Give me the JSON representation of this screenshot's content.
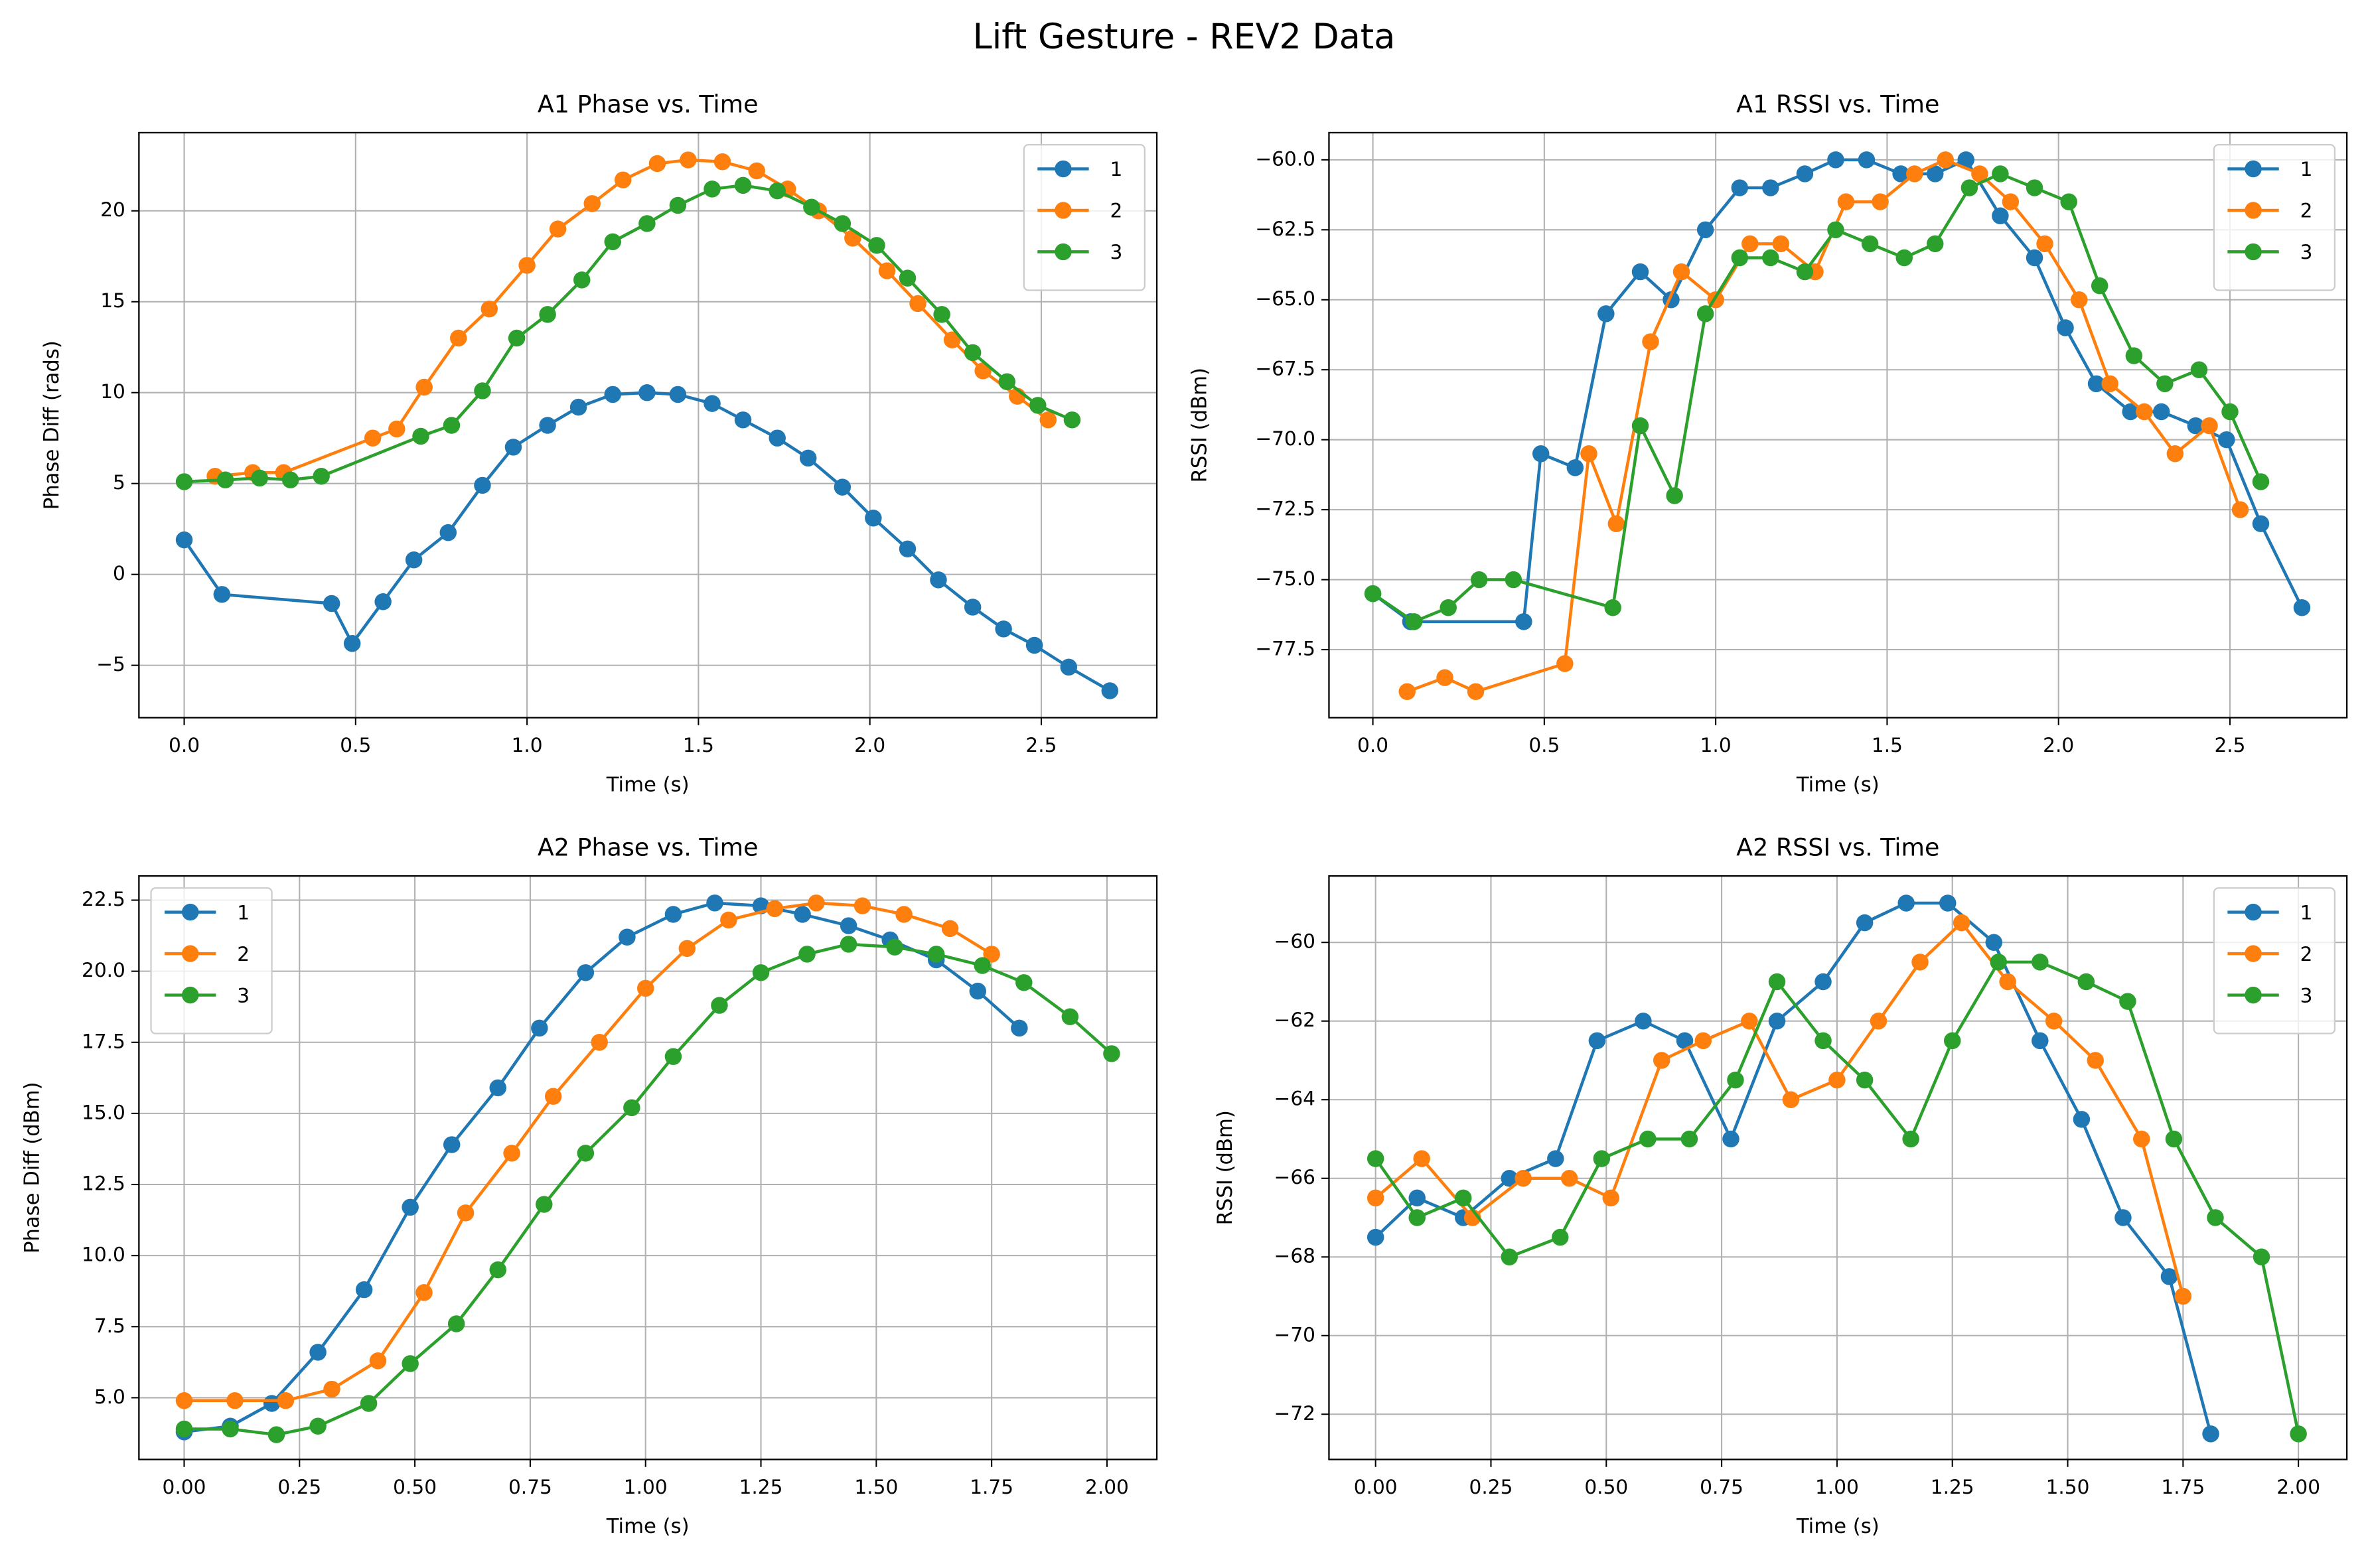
{
  "title": "Lift Gesture - REV2 Data",
  "chart_data": [
    {
      "type": "line",
      "title": "A1 Phase vs. Time",
      "x_label": "Time (s)",
      "y_label": "Phase Diff (rads)",
      "xlim": [
        -0.132,
        2.837
      ],
      "ylim": [
        -7.88,
        24.3
      ],
      "xticks": [
        {
          "value": 0,
          "label": "0.0"
        },
        0.5,
        {
          "value": 1,
          "label": "1.0"
        },
        1.5,
        {
          "value": 2,
          "label": "2.0"
        },
        2.5
      ],
      "yticks": [
        {
          "value": -5,
          "label": "−5"
        },
        0,
        5,
        10,
        15,
        20
      ],
      "grid": true,
      "legend": "upper right",
      "series": [
        {
          "name": "1",
          "color": "#1f77b4",
          "x": [
            0,
            0.11,
            0.43,
            0.49,
            0.58,
            0.67,
            0.77,
            0.87,
            0.96,
            1.06,
            1.15,
            1.25,
            1.35,
            1.44,
            1.54,
            1.63,
            1.73,
            1.82,
            1.92,
            2.01,
            2.11,
            2.2,
            2.3,
            2.39,
            2.48,
            2.58,
            2.7
          ],
          "values": [
            1.9,
            -1.1,
            -1.6,
            -3.8,
            -1.5,
            0.8,
            2.3,
            4.9,
            7.0,
            8.2,
            9.2,
            9.9,
            10.0,
            9.9,
            9.4,
            8.5,
            7.5,
            6.4,
            4.8,
            3.1,
            1.4,
            -0.3,
            -1.8,
            -3.0,
            -3.9,
            -5.1,
            -6.4
          ]
        },
        {
          "name": "2",
          "color": "#ff7f0e",
          "x": [
            0.09,
            0.2,
            0.29,
            0.55,
            0.62,
            0.7,
            0.8,
            0.89,
            1.0,
            1.09,
            1.19,
            1.28,
            1.38,
            1.47,
            1.57,
            1.67,
            1.76,
            1.85,
            1.95,
            2.05,
            2.14,
            2.24,
            2.33,
            2.43,
            2.52
          ],
          "values": [
            5.4,
            5.6,
            5.6,
            7.5,
            8.0,
            10.3,
            13.0,
            14.6,
            17.0,
            19.0,
            20.4,
            21.7,
            22.6,
            22.8,
            22.7,
            22.2,
            21.2,
            20.0,
            18.5,
            16.7,
            14.9,
            12.9,
            11.2,
            9.8,
            8.5
          ]
        },
        {
          "name": "3",
          "color": "#2ca02c",
          "x": [
            0,
            0.12,
            0.22,
            0.31,
            0.4,
            0.69,
            0.78,
            0.87,
            0.97,
            1.06,
            1.16,
            1.25,
            1.35,
            1.44,
            1.54,
            1.63,
            1.73,
            1.83,
            1.92,
            2.02,
            2.11,
            2.21,
            2.3,
            2.4,
            2.49,
            2.59
          ],
          "values": [
            5.1,
            5.2,
            5.3,
            5.2,
            5.4,
            7.6,
            8.2,
            10.1,
            13.0,
            14.3,
            16.2,
            18.3,
            19.3,
            20.3,
            21.2,
            21.4,
            21.1,
            20.2,
            19.3,
            18.1,
            16.3,
            14.3,
            12.2,
            10.6,
            9.3,
            8.5
          ]
        }
      ]
    },
    {
      "type": "line",
      "title": "A1 RSSI vs. Time",
      "x_label": "Time (s)",
      "y_label": "RSSI (dBm)",
      "xlim": [
        -0.128,
        2.841
      ],
      "ylim": [
        -79.93,
        -59.03
      ],
      "xticks": [
        {
          "value": 0,
          "label": "0.0"
        },
        0.5,
        {
          "value": 1,
          "label": "1.0"
        },
        1.5,
        {
          "value": 2,
          "label": "2.0"
        },
        2.5
      ],
      "yticks": [
        {
          "value": -77.5,
          "label": "−77.5"
        },
        {
          "value": -75,
          "label": "−75.0"
        },
        {
          "value": -72.5,
          "label": "−72.5"
        },
        {
          "value": -70,
          "label": "−70.0"
        },
        {
          "value": -67.5,
          "label": "−67.5"
        },
        {
          "value": -65,
          "label": "−65.0"
        },
        {
          "value": -62.5,
          "label": "−62.5"
        },
        {
          "value": -60,
          "label": "−60.0"
        }
      ],
      "grid": true,
      "legend": "upper right",
      "series": [
        {
          "name": "1",
          "color": "#1f77b4",
          "x": [
            0,
            0.11,
            0.44,
            0.49,
            0.59,
            0.68,
            0.78,
            0.87,
            0.97,
            1.07,
            1.16,
            1.26,
            1.35,
            1.44,
            1.54,
            1.64,
            1.73,
            1.83,
            1.93,
            2.02,
            2.11,
            2.21,
            2.3,
            2.4,
            2.49,
            2.59,
            2.71
          ],
          "values": [
            -75.5,
            -76.5,
            -76.5,
            -70.5,
            -71,
            -65.5,
            -64,
            -65,
            -62.5,
            -61,
            -61,
            -60.5,
            -60,
            -60,
            -60.5,
            -60.5,
            -60,
            -62,
            -63.5,
            -66,
            -68,
            -69,
            -69,
            -69.5,
            -70,
            -73,
            -76
          ]
        },
        {
          "name": "2",
          "color": "#ff7f0e",
          "x": [
            0.1,
            0.21,
            0.3,
            0.56,
            0.63,
            0.71,
            0.81,
            0.9,
            1.0,
            1.1,
            1.19,
            1.29,
            1.38,
            1.48,
            1.58,
            1.67,
            1.77,
            1.86,
            1.96,
            2.06,
            2.15,
            2.25,
            2.34,
            2.44,
            2.53
          ],
          "values": [
            -79,
            -78.5,
            -79,
            -78,
            -70.5,
            -73,
            -66.5,
            -64,
            -65,
            -63,
            -63,
            -64,
            -61.5,
            -61.5,
            -60.5,
            -60,
            -60.5,
            -61.5,
            -63,
            -65,
            -68,
            -69,
            -70.5,
            -69.5,
            -72.5
          ]
        },
        {
          "name": "3",
          "color": "#2ca02c",
          "x": [
            0,
            0.12,
            0.22,
            0.31,
            0.41,
            0.7,
            0.78,
            0.88,
            0.97,
            1.07,
            1.16,
            1.26,
            1.35,
            1.45,
            1.55,
            1.64,
            1.74,
            1.83,
            1.93,
            2.03,
            2.12,
            2.22,
            2.31,
            2.41,
            2.5,
            2.59
          ],
          "values": [
            -75.5,
            -76.5,
            -76,
            -75,
            -75,
            -76,
            -69.5,
            -72,
            -65.5,
            -63.5,
            -63.5,
            -64,
            -62.5,
            -63,
            -63.5,
            -63,
            -61,
            -60.5,
            -61,
            -61.5,
            -64.5,
            -67,
            -68,
            -67.5,
            -69,
            -71.5
          ]
        }
      ]
    },
    {
      "type": "line",
      "title": "A2 Phase vs. Time",
      "x_label": "Time (s)",
      "y_label": "Phase Diff (dBm)",
      "xlim": [
        -0.098,
        2.108
      ],
      "ylim": [
        2.83,
        23.35
      ],
      "xticks": [
        {
          "value": 0,
          "label": "0.00"
        },
        0.25,
        {
          "value": 0.5,
          "label": "0.50"
        },
        0.75,
        {
          "value": 1,
          "label": "1.00"
        },
        1.25,
        {
          "value": 1.5,
          "label": "1.50"
        },
        1.75,
        {
          "value": 2,
          "label": "2.00"
        }
      ],
      "yticks": [
        {
          "value": 5,
          "label": "5.0"
        },
        7.5,
        {
          "value": 10,
          "label": "10.0"
        },
        12.5,
        {
          "value": 15,
          "label": "15.0"
        },
        17.5,
        {
          "value": 20,
          "label": "20.0"
        },
        22.5
      ],
      "grid": true,
      "legend": "upper left",
      "series": [
        {
          "name": "1",
          "color": "#1f77b4",
          "x": [
            0,
            0.1,
            0.19,
            0.29,
            0.39,
            0.49,
            0.58,
            0.68,
            0.77,
            0.87,
            0.96,
            1.06,
            1.15,
            1.25,
            1.34,
            1.44,
            1.53,
            1.63,
            1.72,
            1.81
          ],
          "values": [
            3.8,
            4.0,
            4.8,
            6.6,
            8.8,
            11.7,
            13.9,
            15.9,
            18.0,
            19.95,
            21.2,
            22.0,
            22.4,
            22.3,
            22.0,
            21.6,
            21.1,
            20.4,
            19.3,
            18.0
          ]
        },
        {
          "name": "2",
          "color": "#ff7f0e",
          "x": [
            0,
            0.11,
            0.22,
            0.32,
            0.42,
            0.52,
            0.61,
            0.71,
            0.8,
            0.9,
            1.0,
            1.09,
            1.18,
            1.28,
            1.37,
            1.47,
            1.56,
            1.66,
            1.75
          ],
          "values": [
            4.9,
            4.9,
            4.9,
            5.3,
            6.3,
            8.7,
            11.5,
            13.6,
            15.6,
            17.5,
            19.4,
            20.8,
            21.8,
            22.2,
            22.4,
            22.3,
            22.0,
            21.5,
            20.6
          ]
        },
        {
          "name": "3",
          "color": "#2ca02c",
          "x": [
            0,
            0.1,
            0.2,
            0.29,
            0.4,
            0.49,
            0.59,
            0.68,
            0.78,
            0.87,
            0.97,
            1.06,
            1.16,
            1.25,
            1.35,
            1.44,
            1.54,
            1.63,
            1.73,
            1.82,
            1.92,
            2.01
          ],
          "values": [
            3.9,
            3.9,
            3.7,
            4.0,
            4.8,
            6.2,
            7.6,
            9.5,
            11.8,
            13.6,
            15.2,
            17.0,
            18.8,
            19.95,
            20.6,
            20.95,
            20.85,
            20.6,
            20.2,
            19.6,
            18.4,
            17.1
          ]
        }
      ]
    },
    {
      "type": "line",
      "title": "A2 RSSI vs. Time",
      "x_label": "Time (s)",
      "y_label": "RSSI (dBm)",
      "xlim": [
        -0.101,
        2.105
      ],
      "ylim": [
        -73.15,
        -58.31
      ],
      "xticks": [
        {
          "value": 0,
          "label": "0.00"
        },
        0.25,
        {
          "value": 0.5,
          "label": "0.50"
        },
        0.75,
        {
          "value": 1,
          "label": "1.00"
        },
        1.25,
        {
          "value": 1.5,
          "label": "1.50"
        },
        1.75,
        {
          "value": 2,
          "label": "2.00"
        }
      ],
      "yticks": [
        {
          "value": -72,
          "label": "−72"
        },
        {
          "value": -70,
          "label": "−70"
        },
        {
          "value": -68,
          "label": "−68"
        },
        {
          "value": -66,
          "label": "−66"
        },
        {
          "value": -64,
          "label": "−64"
        },
        {
          "value": -62,
          "label": "−62"
        },
        {
          "value": -60,
          "label": "−60"
        }
      ],
      "grid": true,
      "legend": "upper right",
      "series": [
        {
          "name": "1",
          "color": "#1f77b4",
          "x": [
            0,
            0.09,
            0.19,
            0.29,
            0.39,
            0.48,
            0.58,
            0.67,
            0.77,
            0.87,
            0.97,
            1.06,
            1.15,
            1.24,
            1.34,
            1.44,
            1.53,
            1.62,
            1.72,
            1.81
          ],
          "values": [
            -67.5,
            -66.5,
            -67,
            -66,
            -65.5,
            -62.5,
            -62,
            -62.5,
            -65,
            -62,
            -61,
            -59.5,
            -59,
            -59,
            -60,
            -62.5,
            -64.5,
            -67,
            -68.5,
            -72.5
          ]
        },
        {
          "name": "2",
          "color": "#ff7f0e",
          "x": [
            0,
            0.1,
            0.21,
            0.32,
            0.42,
            0.51,
            0.62,
            0.71,
            0.81,
            0.9,
            1.0,
            1.09,
            1.18,
            1.27,
            1.37,
            1.47,
            1.56,
            1.66,
            1.75
          ],
          "values": [
            -66.5,
            -65.5,
            -67,
            -66,
            -66,
            -66.5,
            -63,
            -62.5,
            -62,
            -64,
            -63.5,
            -62,
            -60.5,
            -59.5,
            -61,
            -62,
            -63,
            -65,
            -69
          ]
        },
        {
          "name": "3",
          "color": "#2ca02c",
          "x": [
            0,
            0.09,
            0.19,
            0.29,
            0.4,
            0.49,
            0.59,
            0.68,
            0.78,
            0.87,
            0.97,
            1.06,
            1.16,
            1.25,
            1.35,
            1.44,
            1.54,
            1.63,
            1.73,
            1.82,
            1.92,
            2.0
          ],
          "values": [
            -65.5,
            -67,
            -66.5,
            -68,
            -67.5,
            -65.5,
            -65,
            -65,
            -63.5,
            -61,
            -62.5,
            -63.5,
            -65,
            -62.5,
            -60.5,
            -60.5,
            -61,
            -61.5,
            -65,
            -67,
            -68,
            -72.5
          ]
        }
      ]
    }
  ]
}
